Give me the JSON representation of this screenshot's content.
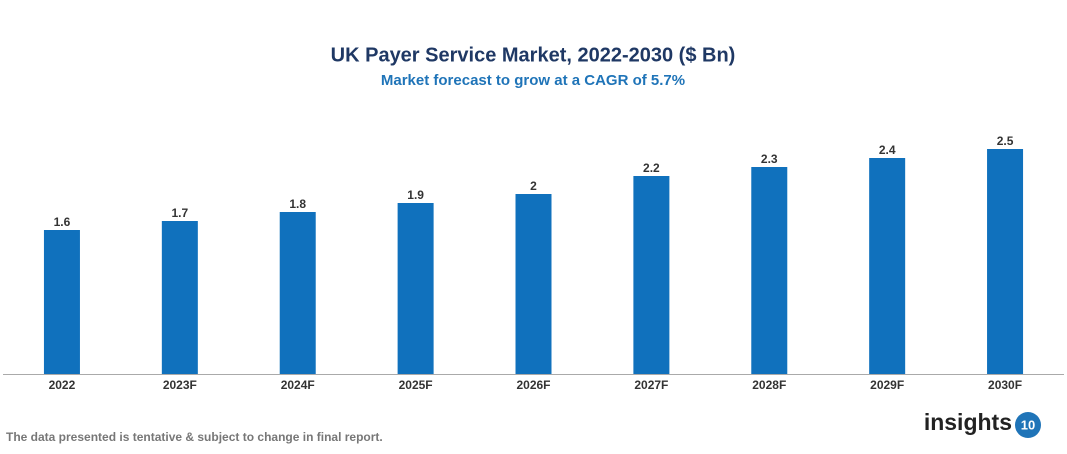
{
  "chart_data": {
    "type": "bar",
    "title": "UK Payer Service Market, 2022-2030 ($ Bn)",
    "subtitle": "Market forecast to grow at a CAGR of 5.7%",
    "categories": [
      "2022",
      "2023F",
      "2024F",
      "2025F",
      "2026F",
      "2027F",
      "2028F",
      "2029F",
      "2030F"
    ],
    "values": [
      1.6,
      1.7,
      1.8,
      1.9,
      2,
      2.2,
      2.3,
      2.4,
      2.5
    ],
    "color": "#1071bd"
  },
  "footer": {
    "note": "The data presented is tentative & subject to change in final report.",
    "brand": "insights",
    "brand_number": "10"
  }
}
